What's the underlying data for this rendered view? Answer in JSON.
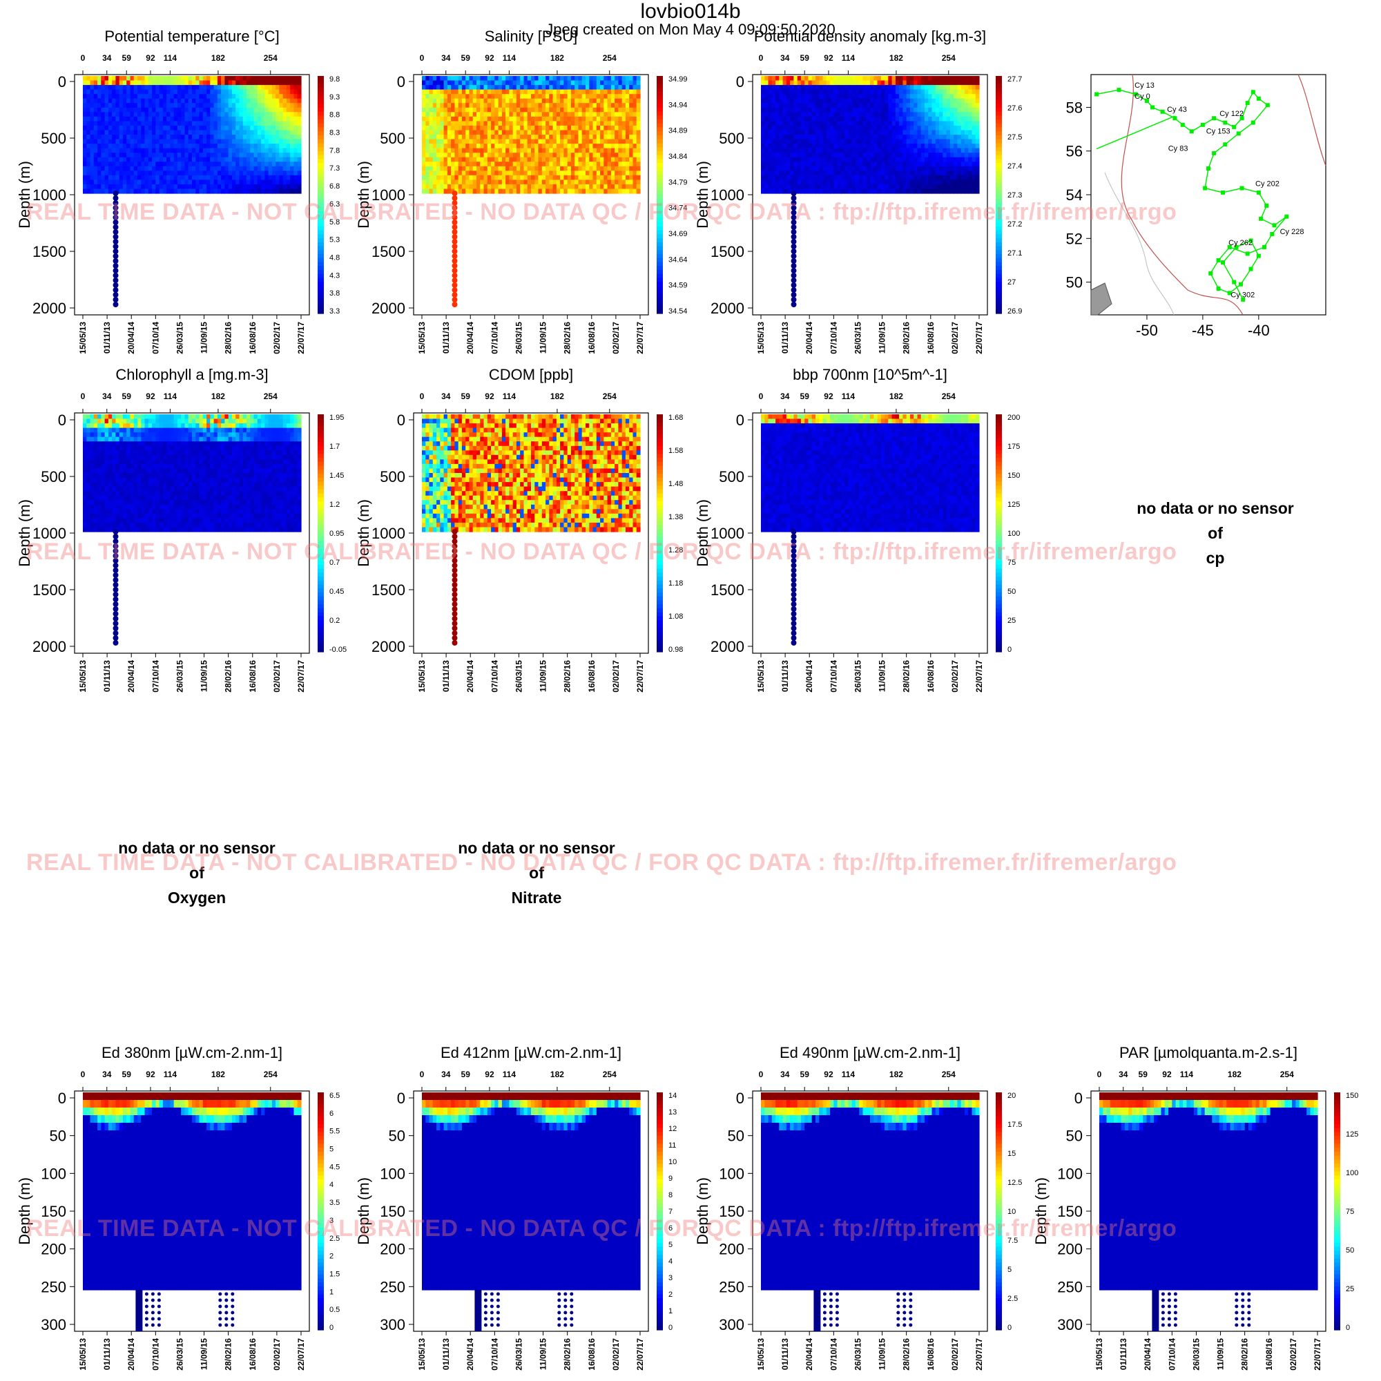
{
  "title": "lovbio014b",
  "subtitle": "Jpeg created on  Mon May  4 09:09:50 2020",
  "watermark": "REAL TIME DATA - NOT CALIBRATED - NO DATA QC   /  FOR QC DATA : ftp://ftp.ifremer.fr/ifremer/argo",
  "y_axis_label": "Depth (m)",
  "top_axis_ticks": [
    "0",
    "34",
    "59",
    "92",
    "114",
    "182",
    "254"
  ],
  "date_axis_ticks": [
    "15/05/13",
    "01/11/13",
    "20/04/14",
    "07/10/14",
    "26/03/15",
    "11/09/15",
    "28/02/16",
    "16/08/16",
    "02/02/17",
    "22/07/17"
  ],
  "no_data": [
    {
      "line1": "no data or no sensor",
      "line2": "of",
      "param": "cp"
    },
    {
      "line1": "no data or no sensor",
      "line2": "of",
      "param": "Oxygen"
    },
    {
      "line1": "no data or no sensor",
      "line2": "of",
      "param": "Nitrate"
    }
  ],
  "colors": {
    "low": "#00008b",
    "mid": "#00ffff",
    "high": "#8b0000",
    "track": "#00ee00"
  },
  "chart_data": [
    {
      "type": "heatmap",
      "title": "Potential temperature [°C]",
      "ylabel": "Depth (m)",
      "ylim": [
        2000,
        0
      ],
      "yticks": [
        "0",
        "500",
        "1000",
        "1500",
        "2000"
      ],
      "colorbar": [
        "9.8",
        "9.3",
        "8.8",
        "8.3",
        "7.8",
        "7.3",
        "6.8",
        "6.3",
        "5.8",
        "5.3",
        "4.8",
        "4.3",
        "3.8",
        "3.3"
      ]
    },
    {
      "type": "heatmap",
      "title": "Salinity [PSU]",
      "ylabel": "Depth (m)",
      "ylim": [
        2000,
        0
      ],
      "yticks": [
        "0",
        "500",
        "1000",
        "1500",
        "2000"
      ],
      "colorbar": [
        "34.99",
        "34.94",
        "34.89",
        "34.84",
        "34.79",
        "34.74",
        "34.69",
        "34.64",
        "34.59",
        "34.54"
      ]
    },
    {
      "type": "heatmap",
      "title": "Potential density anomaly [kg.m-3]",
      "ylabel": "Depth (m)",
      "ylim": [
        2000,
        0
      ],
      "yticks": [
        "0",
        "500",
        "1000",
        "1500",
        "2000"
      ],
      "colorbar": [
        "27.7",
        "27.6",
        "27.5",
        "27.4",
        "27.3",
        "27.2",
        "27.1",
        "27",
        "26.9"
      ]
    },
    {
      "type": "scatter",
      "title": "",
      "xlabel": "",
      "ylabel": "",
      "xlim": [
        -55,
        -34
      ],
      "ylim": [
        48.5,
        59.5
      ],
      "xticks": [
        "-50",
        "-45",
        "-40"
      ],
      "yticks": [
        "58",
        "56",
        "54",
        "52",
        "50"
      ],
      "cycle_labels": [
        "Cy 13",
        "Cy 0",
        "Cy 43",
        "Cy 122",
        "Cy 153",
        "Cy 83",
        "Cy 202",
        "Cy 228",
        "Cy 262",
        "Cy 302"
      ]
    },
    {
      "type": "heatmap",
      "title": "Chlorophyll a [mg.m-3]",
      "ylabel": "Depth (m)",
      "ylim": [
        2000,
        0
      ],
      "yticks": [
        "0",
        "500",
        "1000",
        "1500",
        "2000"
      ],
      "colorbar": [
        "1.95",
        "1.7",
        "1.45",
        "1.2",
        "0.95",
        "0.7",
        "0.45",
        "0.2",
        "-0.05"
      ]
    },
    {
      "type": "heatmap",
      "title": "CDOM  [ppb]",
      "ylabel": "Depth (m)",
      "ylim": [
        2000,
        0
      ],
      "yticks": [
        "0",
        "500",
        "1000",
        "1500",
        "2000"
      ],
      "colorbar": [
        "1.68",
        "1.58",
        "1.48",
        "1.38",
        "1.28",
        "1.18",
        "1.08",
        "0.98"
      ]
    },
    {
      "type": "heatmap",
      "title": "bbp 700nm [10^5m^-1]",
      "ylabel": "Depth (m)",
      "ylim": [
        2000,
        0
      ],
      "yticks": [
        "0",
        "500",
        "1000",
        "1500",
        "2000"
      ],
      "colorbar": [
        "200",
        "175",
        "150",
        "125",
        "100",
        "75",
        "50",
        "25",
        "0"
      ]
    },
    {
      "type": "heatmap",
      "title": "Ed 380nm [µW.cm-2.nm-1]",
      "ylabel": "Depth (m)",
      "ylim": [
        300,
        0
      ],
      "yticks": [
        "0",
        "50",
        "100",
        "150",
        "200",
        "250",
        "300"
      ],
      "colorbar": [
        "6.5",
        "6",
        "5.5",
        "5",
        "4.5",
        "4",
        "3.5",
        "3",
        "2.5",
        "2",
        "1.5",
        "1",
        "0.5",
        "0"
      ]
    },
    {
      "type": "heatmap",
      "title": "Ed 412nm [µW.cm-2.nm-1]",
      "ylabel": "Depth (m)",
      "ylim": [
        300,
        0
      ],
      "yticks": [
        "0",
        "50",
        "100",
        "150",
        "200",
        "250",
        "300"
      ],
      "colorbar": [
        "14",
        "13",
        "12",
        "11",
        "10",
        "9",
        "8",
        "7",
        "6",
        "5",
        "4",
        "3",
        "2",
        "1",
        "0"
      ]
    },
    {
      "type": "heatmap",
      "title": "Ed 490nm [µW.cm-2.nm-1]",
      "ylabel": "Depth (m)",
      "ylim": [
        300,
        0
      ],
      "yticks": [
        "0",
        "50",
        "100",
        "150",
        "200",
        "250",
        "300"
      ],
      "colorbar": [
        "20",
        "17.5",
        "15",
        "12.5",
        "10",
        "7.5",
        "5",
        "2.5",
        "0"
      ]
    },
    {
      "type": "heatmap",
      "title": "PAR [µmolquanta.m-2.s-1]",
      "ylabel": "Depth (m)",
      "ylim": [
        300,
        0
      ],
      "yticks": [
        "0",
        "50",
        "100",
        "150",
        "200",
        "250",
        "300"
      ],
      "colorbar": [
        "150",
        "125",
        "100",
        "75",
        "50",
        "25",
        "0"
      ]
    }
  ]
}
